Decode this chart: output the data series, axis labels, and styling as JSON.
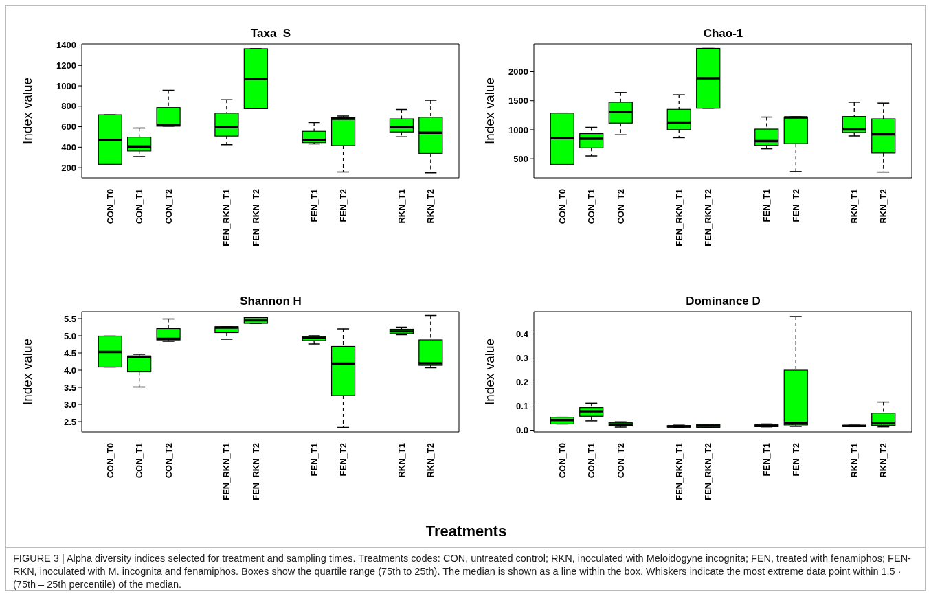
{
  "chart_data": [
    {
      "type": "box",
      "title": "Taxa  S",
      "ylabel": "Index value",
      "color": "#00ff00",
      "ylim": [
        100,
        1410
      ],
      "yticks": [
        200,
        400,
        600,
        800,
        1000,
        1200,
        1400
      ],
      "categories": [
        "CON_T0",
        "CON_T1",
        "CON_T2",
        null,
        "FEN_RKN_T1",
        "FEN_RKN_T2",
        null,
        "FEN_T1",
        "FEN_T2",
        null,
        "RKN_T1",
        "RKN_T2"
      ],
      "boxes": [
        {
          "low": 232,
          "q1": 232,
          "median": 472,
          "q3": 717,
          "high": 717
        },
        {
          "low": 309,
          "q1": 363,
          "median": 408,
          "q3": 499,
          "high": 587
        },
        {
          "low": 605,
          "q1": 605,
          "median": 616,
          "q3": 787,
          "high": 957
        },
        null,
        {
          "low": 424,
          "q1": 509,
          "median": 597,
          "q3": 733,
          "high": 864
        },
        {
          "low": 776,
          "q1": 776,
          "median": 1069,
          "q3": 1363,
          "high": 1363
        },
        null,
        {
          "low": 432,
          "q1": 445,
          "median": 472,
          "q3": 555,
          "high": 640
        },
        {
          "low": 157,
          "q1": 416,
          "median": 677,
          "q3": 688,
          "high": 704
        },
        null,
        {
          "low": 501,
          "q1": 549,
          "median": 595,
          "q3": 677,
          "high": 768
        },
        {
          "low": 149,
          "q1": 339,
          "median": 541,
          "q3": 693,
          "high": 859
        }
      ]
    },
    {
      "type": "box",
      "title": "Chao-1",
      "ylabel": "Index value",
      "color": "#00ff00",
      "ylim": [
        170,
        2480
      ],
      "yticks": [
        500,
        1000,
        1500,
        2000
      ],
      "categories": [
        "CON_T0",
        "CON_T1",
        "CON_T2",
        null,
        "FEN_RKN_T1",
        "FEN_RKN_T2",
        null,
        "FEN_T1",
        "FEN_T2",
        null,
        "RKN_T1",
        "RKN_T2"
      ],
      "boxes": [
        {
          "low": 401,
          "q1": 401,
          "median": 854,
          "q3": 1287,
          "high": 1287
        },
        {
          "low": 549,
          "q1": 687,
          "median": 844,
          "q3": 933,
          "high": 1041
        },
        {
          "low": 913,
          "q1": 1115,
          "median": 1311,
          "q3": 1474,
          "high": 1641
        },
        null,
        {
          "low": 864,
          "q1": 1001,
          "median": 1124,
          "q3": 1351,
          "high": 1602
        },
        {
          "low": 1370,
          "q1": 1370,
          "median": 1887,
          "q3": 2403,
          "high": 2403
        },
        null,
        {
          "low": 672,
          "q1": 731,
          "median": 805,
          "q3": 1011,
          "high": 1218
        },
        {
          "low": 278,
          "q1": 760,
          "median": 1213,
          "q3": 1218,
          "high": 1223
        },
        null,
        {
          "low": 893,
          "q1": 952,
          "median": 1006,
          "q3": 1228,
          "high": 1474
        },
        {
          "low": 269,
          "q1": 598,
          "median": 923,
          "q3": 1188,
          "high": 1459
        }
      ]
    },
    {
      "type": "box",
      "title": "Shannon H",
      "ylabel": "Index value",
      "color": "#00ff00",
      "ylim": [
        2.2,
        5.7
      ],
      "yticks": [
        2.5,
        {
          "value": 3,
          "label": "3.0"
        },
        3.5,
        {
          "value": 4,
          "label": "4.0"
        },
        4.5,
        {
          "value": 5,
          "label": "5.0"
        },
        5.5
      ],
      "categories": [
        "CON_T0",
        "CON_T1",
        "CON_T2",
        null,
        "FEN_RKN_T1",
        "FEN_RKN_T2",
        null,
        "FEN_T1",
        "FEN_T2",
        null,
        "RKN_T1",
        "RKN_T2"
      ],
      "boxes": [
        {
          "low": 4.09,
          "q1": 4.09,
          "median": 4.53,
          "q3": 4.99,
          "high": 4.99
        },
        {
          "low": 3.51,
          "q1": 3.95,
          "median": 4.39,
          "q3": 4.41,
          "high": 4.46
        },
        {
          "low": 4.84,
          "q1": 4.88,
          "median": 4.91,
          "q3": 5.21,
          "high": 5.49
        },
        null,
        {
          "low": 4.9,
          "q1": 5.09,
          "median": 5.24,
          "q3": 5.26,
          "high": 5.26
        },
        {
          "low": 5.36,
          "q1": 5.36,
          "median": 5.45,
          "q3": 5.53,
          "high": 5.53
        },
        null,
        {
          "low": 4.76,
          "q1": 4.86,
          "median": 4.94,
          "q3": 4.98,
          "high": 5.0
        },
        {
          "low": 2.33,
          "q1": 3.26,
          "median": 4.19,
          "q3": 4.69,
          "high": 5.2
        },
        null,
        {
          "low": 5.03,
          "q1": 5.06,
          "median": 5.13,
          "q3": 5.19,
          "high": 5.25
        },
        {
          "low": 4.07,
          "q1": 4.14,
          "median": 4.2,
          "q3": 4.88,
          "high": 5.59
        }
      ]
    },
    {
      "type": "box",
      "title": "Dominance D",
      "ylabel": "Index value",
      "xlabel": "Treatments",
      "color": "#00ff00",
      "ylim": [
        -0.007,
        0.493
      ],
      "yticks": [
        {
          "value": 0,
          "label": "0.0"
        },
        0.1,
        0.2,
        0.3,
        0.4
      ],
      "categories": [
        "CON_T0",
        "CON_T1",
        "CON_T2",
        null,
        "FEN_RKN_T1",
        "FEN_RKN_T2",
        null,
        "FEN_T1",
        "FEN_T2",
        null,
        "RKN_T1",
        "RKN_T2"
      ],
      "boxes": [
        {
          "low": 0.026,
          "q1": 0.026,
          "median": 0.042,
          "q3": 0.054,
          "high": 0.054
        },
        {
          "low": 0.039,
          "q1": 0.058,
          "median": 0.079,
          "q3": 0.094,
          "high": 0.112
        },
        {
          "low": 0.013,
          "q1": 0.018,
          "median": 0.024,
          "q3": 0.031,
          "high": 0.035
        },
        null,
        {
          "low": 0.012,
          "q1": 0.013,
          "median": 0.016,
          "q3": 0.019,
          "high": 0.021
        },
        {
          "low": 0.012,
          "q1": 0.012,
          "median": 0.019,
          "q3": 0.024,
          "high": 0.024
        },
        null,
        {
          "low": 0.014,
          "q1": 0.015,
          "median": 0.019,
          "q3": 0.022,
          "high": 0.026
        },
        {
          "low": 0.016,
          "q1": 0.022,
          "median": 0.031,
          "q3": 0.25,
          "high": 0.473
        },
        null,
        {
          "low": 0.015,
          "q1": 0.016,
          "median": 0.018,
          "q3": 0.02,
          "high": 0.021
        },
        {
          "low": 0.014,
          "q1": 0.02,
          "median": 0.029,
          "q3": 0.071,
          "high": 0.117
        }
      ],
      "annotations": [
        "FIGURE 3 | Alpha diversity indices selected for treatment and sampling times. Treatments codes: CON, untreated control; RKN, inoculated with Meloidogyne incognita; FEN, treated with fenamiphos; FEN-RKN, inoculated with M. incognita and fenamiphos. Boxes show the quartile range (75th to 25th). The median is shown as a line within the box. Whiskers indicate the most extreme data point within 1.5 · (75th – 25th percentile) of the median."
      ]
    }
  ]
}
